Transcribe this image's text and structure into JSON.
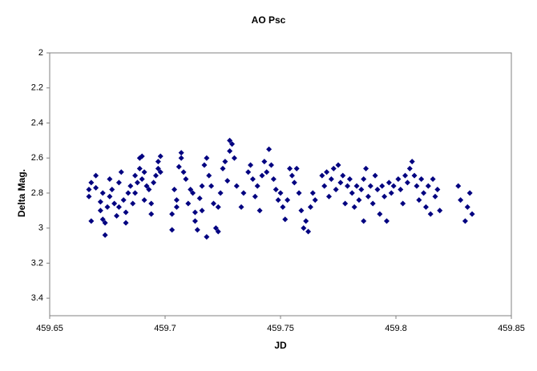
{
  "chart_data": {
    "type": "scatter",
    "title": "AO Psc",
    "x_label": "JD",
    "y_label": "Delta Mag.",
    "color": "#000080",
    "xlim": [
      459.65,
      459.85
    ],
    "xticks": [
      459.65,
      459.7,
      459.75,
      459.8,
      459.85
    ],
    "ylim": [
      2,
      3.5
    ],
    "yticks": [
      2,
      2.2,
      2.4,
      2.6,
      2.8,
      3,
      3.2,
      3.4
    ],
    "y_inverted": true,
    "grid": false,
    "x": [
      459.667,
      459.667,
      459.668,
      459.668,
      459.67,
      459.67,
      459.672,
      459.672,
      459.673,
      459.673,
      459.674,
      459.674,
      459.675,
      459.676,
      459.676,
      459.677,
      459.678,
      459.679,
      459.68,
      459.68,
      459.681,
      459.682,
      459.683,
      459.683,
      459.684,
      459.685,
      459.686,
      459.687,
      459.687,
      459.688,
      459.689,
      459.689,
      459.69,
      459.69,
      459.691,
      459.691,
      459.692,
      459.693,
      459.694,
      459.694,
      459.695,
      459.696,
      459.697,
      459.697,
      459.698,
      459.698,
      459.703,
      459.703,
      459.704,
      459.705,
      459.705,
      459.706,
      459.707,
      459.707,
      459.708,
      459.709,
      459.71,
      459.711,
      459.712,
      459.713,
      459.713,
      459.714,
      459.715,
      459.716,
      459.716,
      459.717,
      459.718,
      459.718,
      459.719,
      459.72,
      459.721,
      459.722,
      459.723,
      459.723,
      459.724,
      459.725,
      459.726,
      459.727,
      459.728,
      459.728,
      459.729,
      459.73,
      459.731,
      459.733,
      459.734,
      459.736,
      459.737,
      459.738,
      459.739,
      459.74,
      459.741,
      459.742,
      459.743,
      459.744,
      459.745,
      459.746,
      459.747,
      459.748,
      459.749,
      459.75,
      459.751,
      459.752,
      459.753,
      459.754,
      459.755,
      459.756,
      459.757,
      459.758,
      459.759,
      459.76,
      459.761,
      459.762,
      459.763,
      459.764,
      459.765,
      459.768,
      459.769,
      459.77,
      459.771,
      459.772,
      459.773,
      459.774,
      459.775,
      459.776,
      459.777,
      459.778,
      459.779,
      459.78,
      459.781,
      459.782,
      459.783,
      459.784,
      459.785,
      459.786,
      459.786,
      459.787,
      459.788,
      459.789,
      459.79,
      459.791,
      459.792,
      459.793,
      459.794,
      459.795,
      459.796,
      459.797,
      459.798,
      459.799,
      459.801,
      459.802,
      459.803,
      459.804,
      459.805,
      459.806,
      459.807,
      459.808,
      459.809,
      459.81,
      459.811,
      459.812,
      459.813,
      459.814,
      459.815,
      459.816,
      459.817,
      459.818,
      459.819,
      459.827,
      459.828,
      459.83,
      459.831,
      459.832,
      459.833
    ],
    "values": [
      2.78,
      2.82,
      2.74,
      2.96,
      2.7,
      2.77,
      2.85,
      2.9,
      2.8,
      2.95,
      2.97,
      3.04,
      2.88,
      2.82,
      2.72,
      2.78,
      2.86,
      2.93,
      2.74,
      2.88,
      2.68,
      2.84,
      2.91,
      2.97,
      2.8,
      2.76,
      2.86,
      2.7,
      2.8,
      2.74,
      2.66,
      2.6,
      2.59,
      2.72,
      2.68,
      2.84,
      2.76,
      2.78,
      2.86,
      2.92,
      2.74,
      2.7,
      2.62,
      2.66,
      2.59,
      2.68,
      2.92,
      3.01,
      2.78,
      2.84,
      2.88,
      2.65,
      2.57,
      2.6,
      2.68,
      2.72,
      2.86,
      2.78,
      2.8,
      2.91,
      2.96,
      3.01,
      2.83,
      2.9,
      2.76,
      2.64,
      2.6,
      3.05,
      2.7,
      2.76,
      2.86,
      3.0,
      3.02,
      2.88,
      2.8,
      2.66,
      2.62,
      2.73,
      2.56,
      2.5,
      2.52,
      2.6,
      2.76,
      2.88,
      2.8,
      2.68,
      2.64,
      2.72,
      2.82,
      2.76,
      2.9,
      2.7,
      2.62,
      2.68,
      2.55,
      2.64,
      2.72,
      2.78,
      2.84,
      2.8,
      2.88,
      2.95,
      2.84,
      2.66,
      2.7,
      2.74,
      2.66,
      2.8,
      2.9,
      3.0,
      2.96,
      3.02,
      2.88,
      2.8,
      2.84,
      2.7,
      2.76,
      2.68,
      2.82,
      2.72,
      2.66,
      2.78,
      2.64,
      2.74,
      2.7,
      2.86,
      2.76,
      2.72,
      2.8,
      2.88,
      2.76,
      2.84,
      2.78,
      2.72,
      2.96,
      2.66,
      2.82,
      2.76,
      2.86,
      2.7,
      2.78,
      2.92,
      2.76,
      2.82,
      2.96,
      2.74,
      2.8,
      2.76,
      2.72,
      2.78,
      2.86,
      2.7,
      2.74,
      2.66,
      2.62,
      2.7,
      2.76,
      2.84,
      2.72,
      2.8,
      2.88,
      2.76,
      2.92,
      2.72,
      2.82,
      2.78,
      2.9,
      2.76,
      2.84,
      2.96,
      2.88,
      2.8,
      2.92
    ]
  }
}
